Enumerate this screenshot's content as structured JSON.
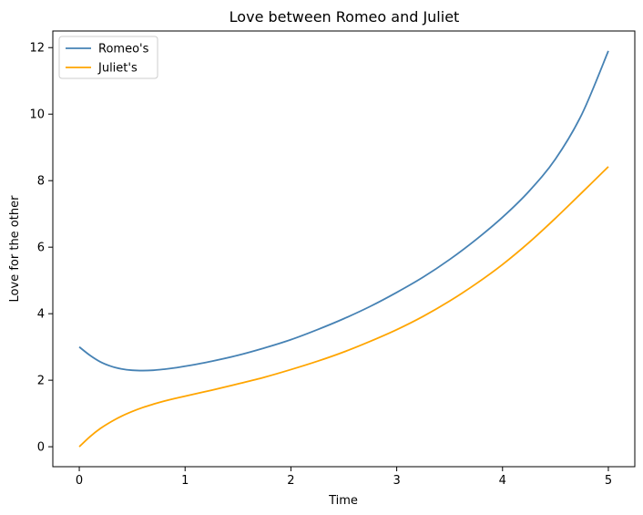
{
  "chart_data": {
    "type": "line",
    "title": "Love between Romeo and Juliet",
    "xlabel": "Time",
    "ylabel": "Love for the other",
    "xlim": [
      -0.25,
      5.25
    ],
    "ylim": [
      -0.6,
      12.5
    ],
    "xticks": [
      0,
      1,
      2,
      3,
      4,
      5
    ],
    "yticks": [
      0,
      2,
      4,
      6,
      8,
      10,
      12
    ],
    "grid": false,
    "legend_position": "top-left",
    "series": [
      {
        "name": "Romeo's",
        "color": "#4682B4",
        "x": [
          0,
          0.1,
          0.2,
          0.3,
          0.4,
          0.5,
          0.6,
          0.7,
          0.8,
          0.9,
          1.0,
          1.25,
          1.5,
          1.75,
          2.0,
          2.25,
          2.5,
          2.75,
          3.0,
          3.25,
          3.5,
          3.75,
          4.0,
          4.25,
          4.5,
          4.75,
          5.0
        ],
        "y": [
          3.0,
          2.75,
          2.55,
          2.42,
          2.34,
          2.3,
          2.29,
          2.3,
          2.33,
          2.37,
          2.42,
          2.57,
          2.75,
          2.97,
          3.22,
          3.52,
          3.85,
          4.22,
          4.64,
          5.1,
          5.63,
          6.23,
          6.9,
          7.68,
          8.65,
          10.0,
          11.9
        ]
      },
      {
        "name": "Juliet's",
        "color": "#FFA500",
        "x": [
          0,
          0.1,
          0.2,
          0.3,
          0.4,
          0.5,
          0.6,
          0.7,
          0.8,
          0.9,
          1.0,
          1.25,
          1.5,
          1.75,
          2.0,
          2.25,
          2.5,
          2.75,
          3.0,
          3.25,
          3.5,
          3.75,
          4.0,
          4.25,
          4.5,
          4.75,
          5.0
        ],
        "y": [
          0.0,
          0.3,
          0.55,
          0.75,
          0.92,
          1.06,
          1.18,
          1.28,
          1.37,
          1.45,
          1.52,
          1.7,
          1.89,
          2.09,
          2.32,
          2.57,
          2.85,
          3.17,
          3.52,
          3.92,
          4.38,
          4.9,
          5.48,
          6.14,
          6.87,
          7.64,
          8.42
        ]
      }
    ]
  }
}
